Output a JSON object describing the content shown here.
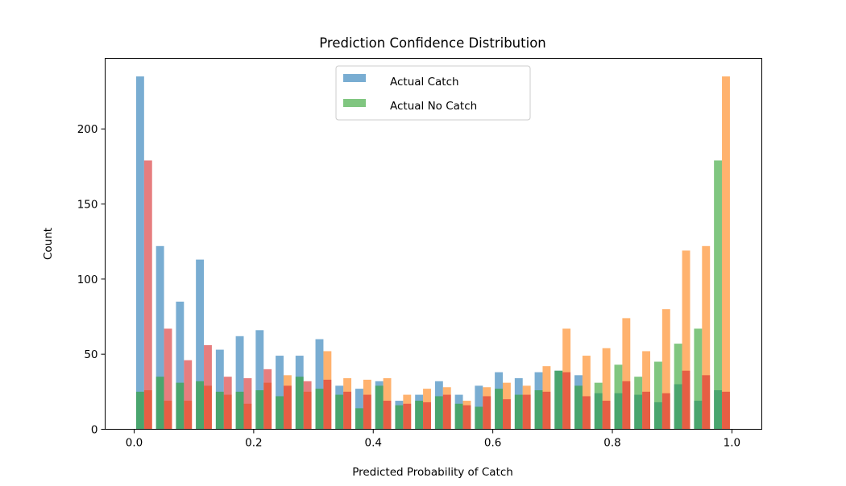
{
  "chart_data": {
    "type": "bar",
    "subtype": "overlaid-histogram",
    "title": "Prediction Confidence Distribution",
    "xlabel": "Predicted Probability of Catch",
    "ylabel": "Count",
    "xlim": [
      -0.0485,
      1.05
    ],
    "ylim": [
      0,
      247
    ],
    "xticks": [
      "0.0",
      "0.2",
      "0.4",
      "0.6",
      "0.8",
      "1.0"
    ],
    "yticks": [
      "0",
      "50",
      "100",
      "150",
      "200"
    ],
    "bins": 30,
    "bin_range": [
      0,
      1
    ],
    "grid": false,
    "legend_position": "upper center",
    "legend": [
      {
        "label": "Actual Catch",
        "color": "#1f77b4"
      },
      {
        "label": "Actual No Catch",
        "color": "#2ca02c"
      }
    ],
    "series": [
      {
        "color": "#1f77b4",
        "slot": 0,
        "values": [
          235,
          122,
          85,
          113,
          53,
          62,
          66,
          49,
          49,
          60,
          29,
          27,
          32,
          19,
          23,
          32,
          23,
          29,
          38,
          34,
          38,
          39,
          36,
          24,
          24,
          23,
          18,
          30,
          19,
          26
        ]
      },
      {
        "color": "#ff7f0e",
        "slot": 1,
        "values": [
          26,
          19,
          19,
          29,
          23,
          17,
          31,
          36,
          25,
          52,
          34,
          33,
          34,
          23,
          27,
          28,
          19,
          28,
          31,
          29,
          42,
          67,
          49,
          54,
          74,
          52,
          80,
          119,
          122,
          235
        ]
      },
      {
        "color": "#2ca02c",
        "slot": 0,
        "values": [
          25,
          35,
          31,
          32,
          25,
          25,
          26,
          22,
          35,
          27,
          23,
          14,
          29,
          16,
          19,
          22,
          17,
          15,
          27,
          23,
          26,
          39,
          29,
          31,
          43,
          35,
          45,
          57,
          67,
          179
        ]
      },
      {
        "color": "#d62728",
        "slot": 1,
        "values": [
          179,
          67,
          46,
          56,
          35,
          34,
          40,
          29,
          32,
          33,
          25,
          23,
          19,
          17,
          18,
          23,
          16,
          22,
          20,
          23,
          25,
          38,
          22,
          19,
          32,
          25,
          24,
          39,
          36,
          25
        ]
      }
    ]
  }
}
